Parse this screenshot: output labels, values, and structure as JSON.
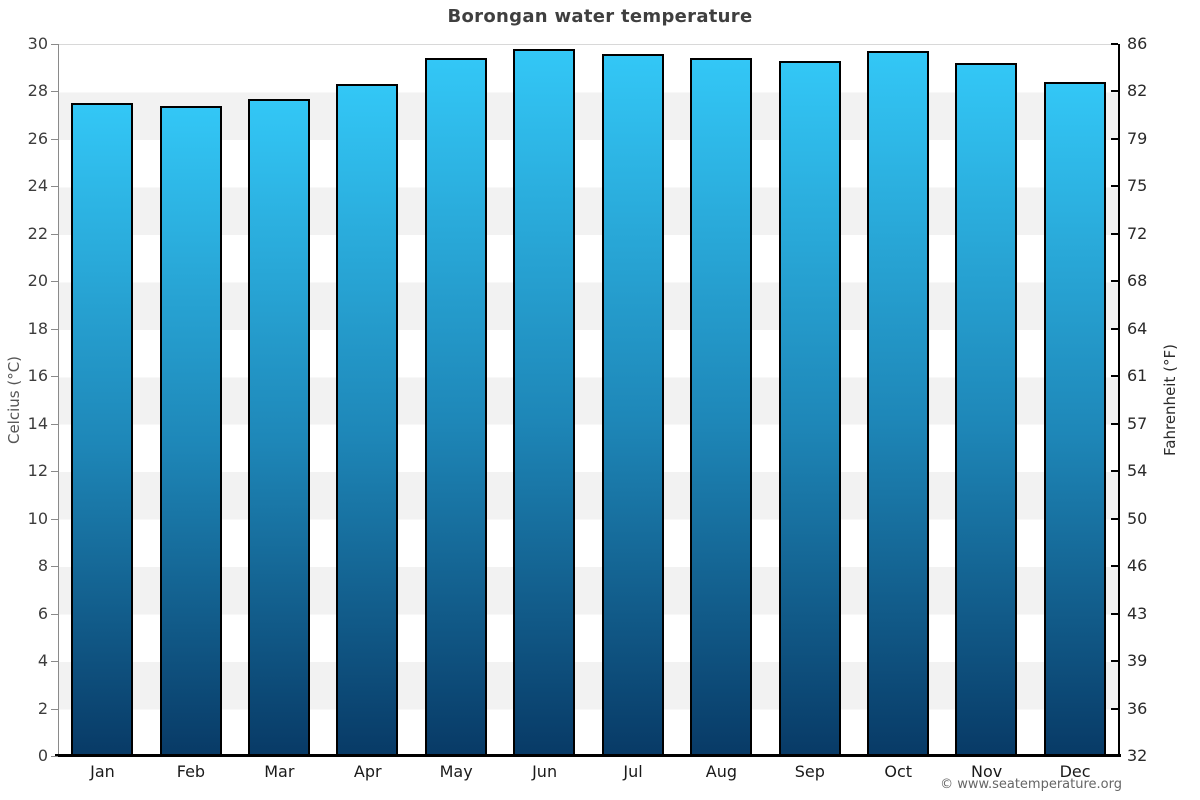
{
  "chart_data": {
    "type": "bar",
    "title": "Borongan water temperature",
    "categories": [
      "Jan",
      "Feb",
      "Mar",
      "Apr",
      "May",
      "Jun",
      "Jul",
      "Aug",
      "Sep",
      "Oct",
      "Nov",
      "Dec"
    ],
    "values": [
      27.5,
      27.4,
      27.7,
      28.3,
      29.4,
      29.8,
      29.6,
      29.4,
      29.3,
      29.7,
      29.2,
      28.4
    ],
    "unit": "°C",
    "ylabel_left": "Celcius (°C)",
    "ylabel_right": "Fahrenheit (°F)",
    "ylim": [
      0,
      30
    ],
    "celsius_ticks": [
      30,
      28,
      26,
      24,
      22,
      20,
      18,
      16,
      14,
      12,
      10,
      8,
      6,
      4,
      2,
      0
    ],
    "fahrenheit_ticks": [
      86,
      82,
      79,
      75,
      72,
      68,
      64,
      61,
      57,
      54,
      50,
      46,
      43,
      39,
      36,
      32
    ],
    "grid": "striped-horizontal-bands",
    "legend": "none",
    "colors": {
      "bar_gradient_top": "#33c7f6",
      "bar_gradient_mid": "#1e87b8",
      "bar_gradient_bottom": "#083a66",
      "bar_border": "#000000",
      "stripe_light": "#ffffff",
      "stripe_dark": "#f2f2f2",
      "title": "#3f3f3f",
      "tick_text": "#3d3d3d"
    }
  },
  "footer": {
    "copyright": "© www.seatemperature.org"
  }
}
